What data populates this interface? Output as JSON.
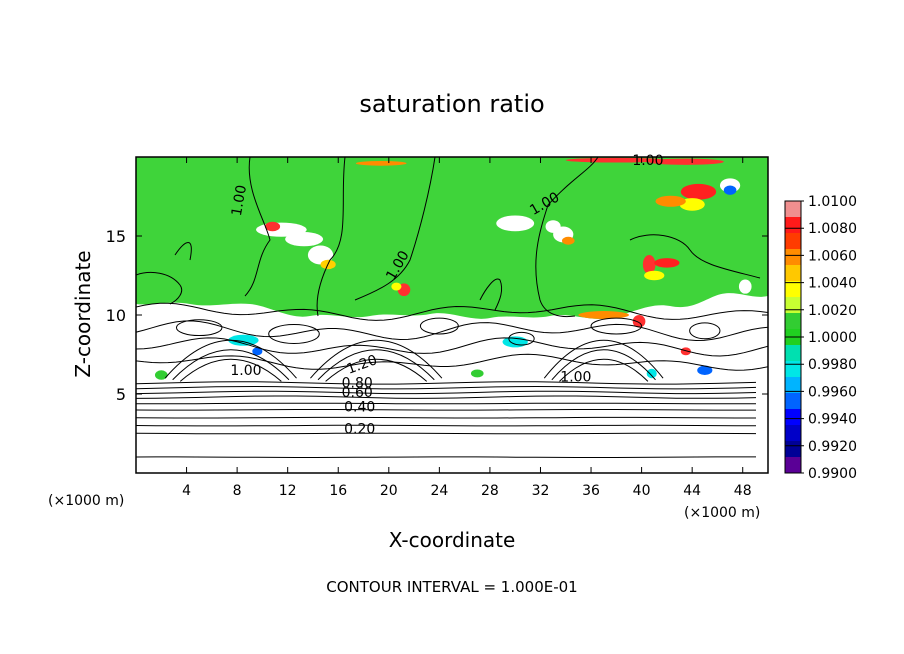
{
  "chart_data": {
    "type": "heatmap",
    "title": "saturation ratio",
    "xlabel": "X-coordinate",
    "ylabel": "Z-coordinate",
    "x_unit_left": "(×1000 m)",
    "x_unit_right": "(×1000 m)",
    "xlim": [
      0,
      50
    ],
    "ylim": [
      0,
      20
    ],
    "x_ticks": [
      "4",
      "8",
      "12",
      "16",
      "20",
      "24",
      "28",
      "32",
      "36",
      "40",
      "44",
      "48"
    ],
    "y_ticks": [
      "5",
      "10",
      "15"
    ],
    "footer": "CONTOUR INTERVAL = 1.000E-01",
    "colorbar": {
      "ticks": [
        "1.0100",
        "1.0080",
        "1.0060",
        "1.0040",
        "1.0020",
        "1.0000",
        "0.9980",
        "0.9960",
        "0.9940",
        "0.9920",
        "0.9900"
      ],
      "colors": [
        "#f08f8f",
        "#ff1a1a",
        "#ff3c00",
        "#ff8c00",
        "#ffc800",
        "#ffff00",
        "#c8ff32",
        "#32cd32",
        "#20d020",
        "#00e0b0",
        "#00e6e6",
        "#00b4ff",
        "#0064ff",
        "#0000ff",
        "#0000c8",
        "#000096",
        "#5a0096"
      ]
    },
    "contour_labels": [
      "1.00",
      "0.20",
      "0.40",
      "0.60",
      "0.80",
      "1.20"
    ],
    "contour_levels": [
      0.1,
      0.2,
      0.3,
      0.4,
      0.5,
      0.6,
      0.7,
      0.8,
      0.9,
      1.0,
      1.1,
      1.2
    ],
    "saturated_top_z": 10.5
  }
}
